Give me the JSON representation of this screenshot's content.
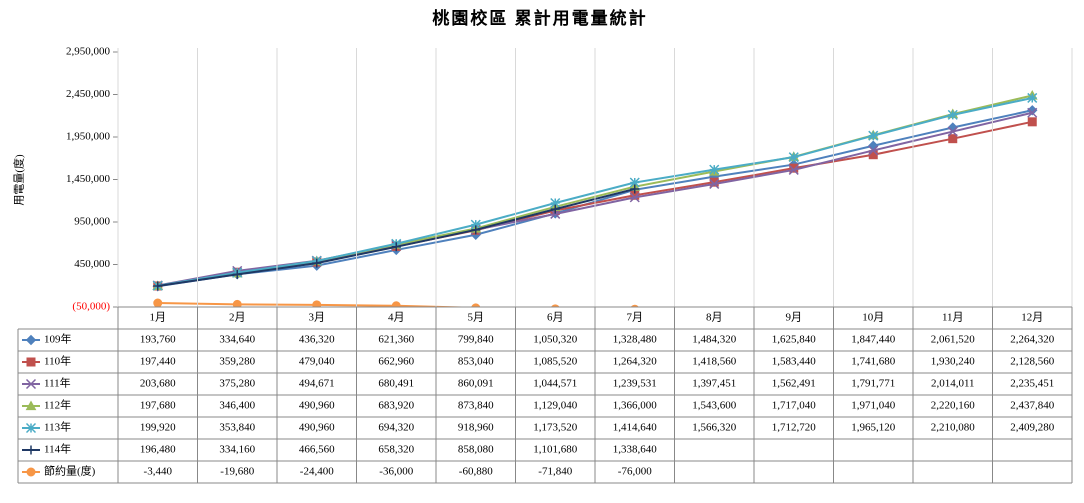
{
  "chart_data": {
    "type": "line",
    "title": "桃園校區 累計用電量統計",
    "y_label": "用電量(度)",
    "categories": [
      "1月",
      "2月",
      "3月",
      "4月",
      "5月",
      "6月",
      "7月",
      "8月",
      "9月",
      "10月",
      "11月",
      "12月"
    ],
    "ylim": [
      -50000,
      2950000
    ],
    "yticks": [
      {
        "value": -50000,
        "label": "(50,000)"
      },
      {
        "value": 450000,
        "label": "450,000"
      },
      {
        "value": 950000,
        "label": "950,000"
      },
      {
        "value": 1450000,
        "label": "1,450,000"
      },
      {
        "value": 1950000,
        "label": "1,950,000"
      },
      {
        "value": 2450000,
        "label": "2,450,000"
      },
      {
        "value": 2950000,
        "label": "2,950,000"
      }
    ],
    "grid": true,
    "negative_tick_color": "#ff0000",
    "series": [
      {
        "name": "109年",
        "color": "#4f81bd",
        "marker": "diamond",
        "values": [
          193760,
          334640,
          436320,
          621360,
          799840,
          1050320,
          1328480,
          1484320,
          1625840,
          1847440,
          2061520,
          2264320
        ],
        "value_labels": [
          "193,760",
          "334,640",
          "436,320",
          "621,360",
          "799,840",
          "1,050,320",
          "1,328,480",
          "1,484,320",
          "1,625,840",
          "1,847,440",
          "2,061,520",
          "2,264,320"
        ]
      },
      {
        "name": "110年",
        "color": "#c0504d",
        "marker": "square",
        "values": [
          197440,
          359280,
          479040,
          662960,
          853040,
          1085520,
          1264320,
          1418560,
          1583440,
          1741680,
          1930240,
          2128560
        ],
        "value_labels": [
          "197,440",
          "359,280",
          "479,040",
          "662,960",
          "853,040",
          "1,085,520",
          "1,264,320",
          "1,418,560",
          "1,583,440",
          "1,741,680",
          "1,930,240",
          "2,128,560"
        ]
      },
      {
        "name": "111年",
        "color": "#8064a2",
        "marker": "x",
        "values": [
          203680,
          375280,
          494671,
          680491,
          860091,
          1044571,
          1239531,
          1397451,
          1562491,
          1791771,
          2014011,
          2235451
        ],
        "value_labels": [
          "203,680",
          "375,280",
          "494,671",
          "680,491",
          "860,091",
          "1,044,571",
          "1,239,531",
          "1,397,451",
          "1,562,491",
          "1,791,771",
          "2,014,011",
          "2,235,451"
        ]
      },
      {
        "name": "112年",
        "color": "#9bbb59",
        "marker": "triangle",
        "values": [
          197680,
          346400,
          490960,
          683920,
          873840,
          1129040,
          1366000,
          1543600,
          1717040,
          1971040,
          2220160,
          2437840
        ],
        "value_labels": [
          "197,680",
          "346,400",
          "490,960",
          "683,920",
          "873,840",
          "1,129,040",
          "1,366,000",
          "1,543,600",
          "1,717,040",
          "1,971,040",
          "2,220,160",
          "2,437,840"
        ]
      },
      {
        "name": "113年",
        "color": "#4bacc6",
        "marker": "star",
        "values": [
          199920,
          353840,
          490960,
          694320,
          918960,
          1173520,
          1414640,
          1566320,
          1712720,
          1965120,
          2210080,
          2409280
        ],
        "value_labels": [
          "199,920",
          "353,840",
          "490,960",
          "694,320",
          "918,960",
          "1,173,520",
          "1,414,640",
          "1,566,320",
          "1,712,720",
          "1,965,120",
          "2,210,080",
          "2,409,280"
        ]
      },
      {
        "name": "114年",
        "color": "#1f3864",
        "marker": "plus",
        "values": [
          196480,
          334160,
          466560,
          658320,
          858080,
          1101680,
          1338640,
          null,
          null,
          null,
          null,
          null
        ],
        "value_labels": [
          "196,480",
          "334,160",
          "466,560",
          "658,320",
          "858,080",
          "1,101,680",
          "1,338,640",
          null,
          null,
          null,
          null,
          null
        ]
      },
      {
        "name": "節約量(度)",
        "color": "#f79646",
        "marker": "circle",
        "values": [
          -3440,
          -19680,
          -24400,
          -36000,
          -60880,
          -71840,
          -76000,
          null,
          null,
          null,
          null,
          null
        ],
        "value_labels": [
          "-3,440",
          "-19,680",
          "-24,400",
          "-36,000",
          "-60,880",
          "-71,840",
          "-76,000",
          null,
          null,
          null,
          null,
          null
        ]
      }
    ]
  }
}
